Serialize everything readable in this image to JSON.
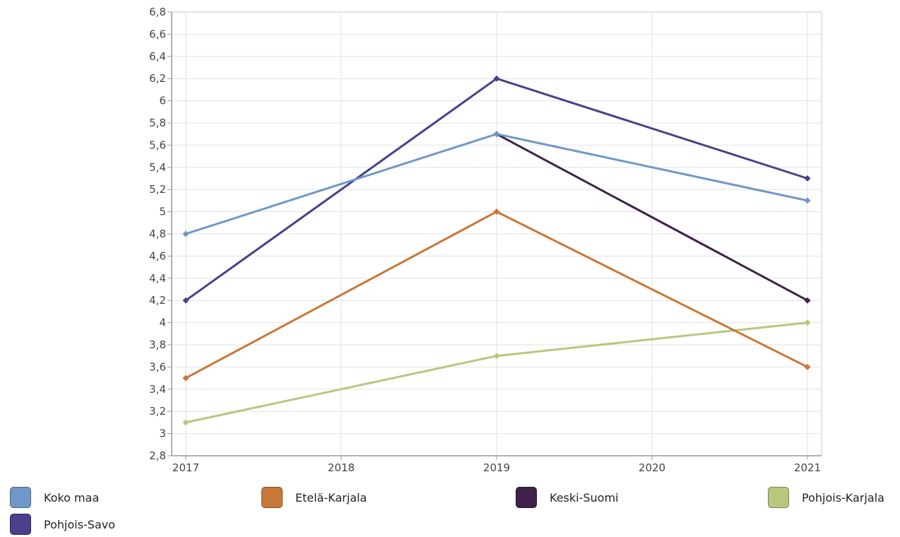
{
  "chart_data": {
    "type": "line",
    "x": [
      "2017",
      "2018",
      "2019",
      "2020",
      "2021"
    ],
    "series": [
      {
        "name": "Koko maa",
        "color": "#6f98c8",
        "points": [
          [
            2017,
            4.8
          ],
          [
            2019,
            5.7
          ],
          [
            2021,
            5.1
          ]
        ]
      },
      {
        "name": "Etelä-Karjala",
        "color": "#c87838",
        "points": [
          [
            2017,
            3.5
          ],
          [
            2019,
            5.0
          ],
          [
            2021,
            3.6
          ]
        ]
      },
      {
        "name": "Keski-Suomi",
        "color": "#3e2248",
        "points": [
          [
            2019,
            5.7
          ],
          [
            2021,
            4.2
          ]
        ]
      },
      {
        "name": "Pohjois-Karjala",
        "color": "#b7c87c",
        "points": [
          [
            2017,
            3.1
          ],
          [
            2019,
            3.7
          ],
          [
            2021,
            4.0
          ]
        ]
      },
      {
        "name": "Pohjois-Savo",
        "color": "#4c3f8c",
        "points": [
          [
            2017,
            4.2
          ],
          [
            2019,
            6.2
          ],
          [
            2021,
            5.3
          ]
        ]
      }
    ],
    "ylim": [
      2.8,
      6.8
    ],
    "yticks": [
      "2,8",
      "3",
      "3,2",
      "3,4",
      "3,6",
      "3,8",
      "4",
      "4,2",
      "4,4",
      "4,6",
      "4,8",
      "5",
      "5,2",
      "5,4",
      "5,6",
      "5,8",
      "6",
      "6,2",
      "6,4",
      "6,6",
      "6,8"
    ],
    "xticks": [
      "2017",
      "2018",
      "2019",
      "2020",
      "2021"
    ],
    "grid": true,
    "legend_position": "bottom"
  },
  "legend": {
    "items": [
      {
        "label": "Koko maa",
        "color": "#6f98c8"
      },
      {
        "label": "Etelä-Karjala",
        "color": "#c87838"
      },
      {
        "label": "Keski-Suomi",
        "color": "#3e2248"
      },
      {
        "label": "Pohjois-Karjala",
        "color": "#b7c87c"
      },
      {
        "label": "Pohjois-Savo",
        "color": "#4c3f8c"
      }
    ]
  }
}
